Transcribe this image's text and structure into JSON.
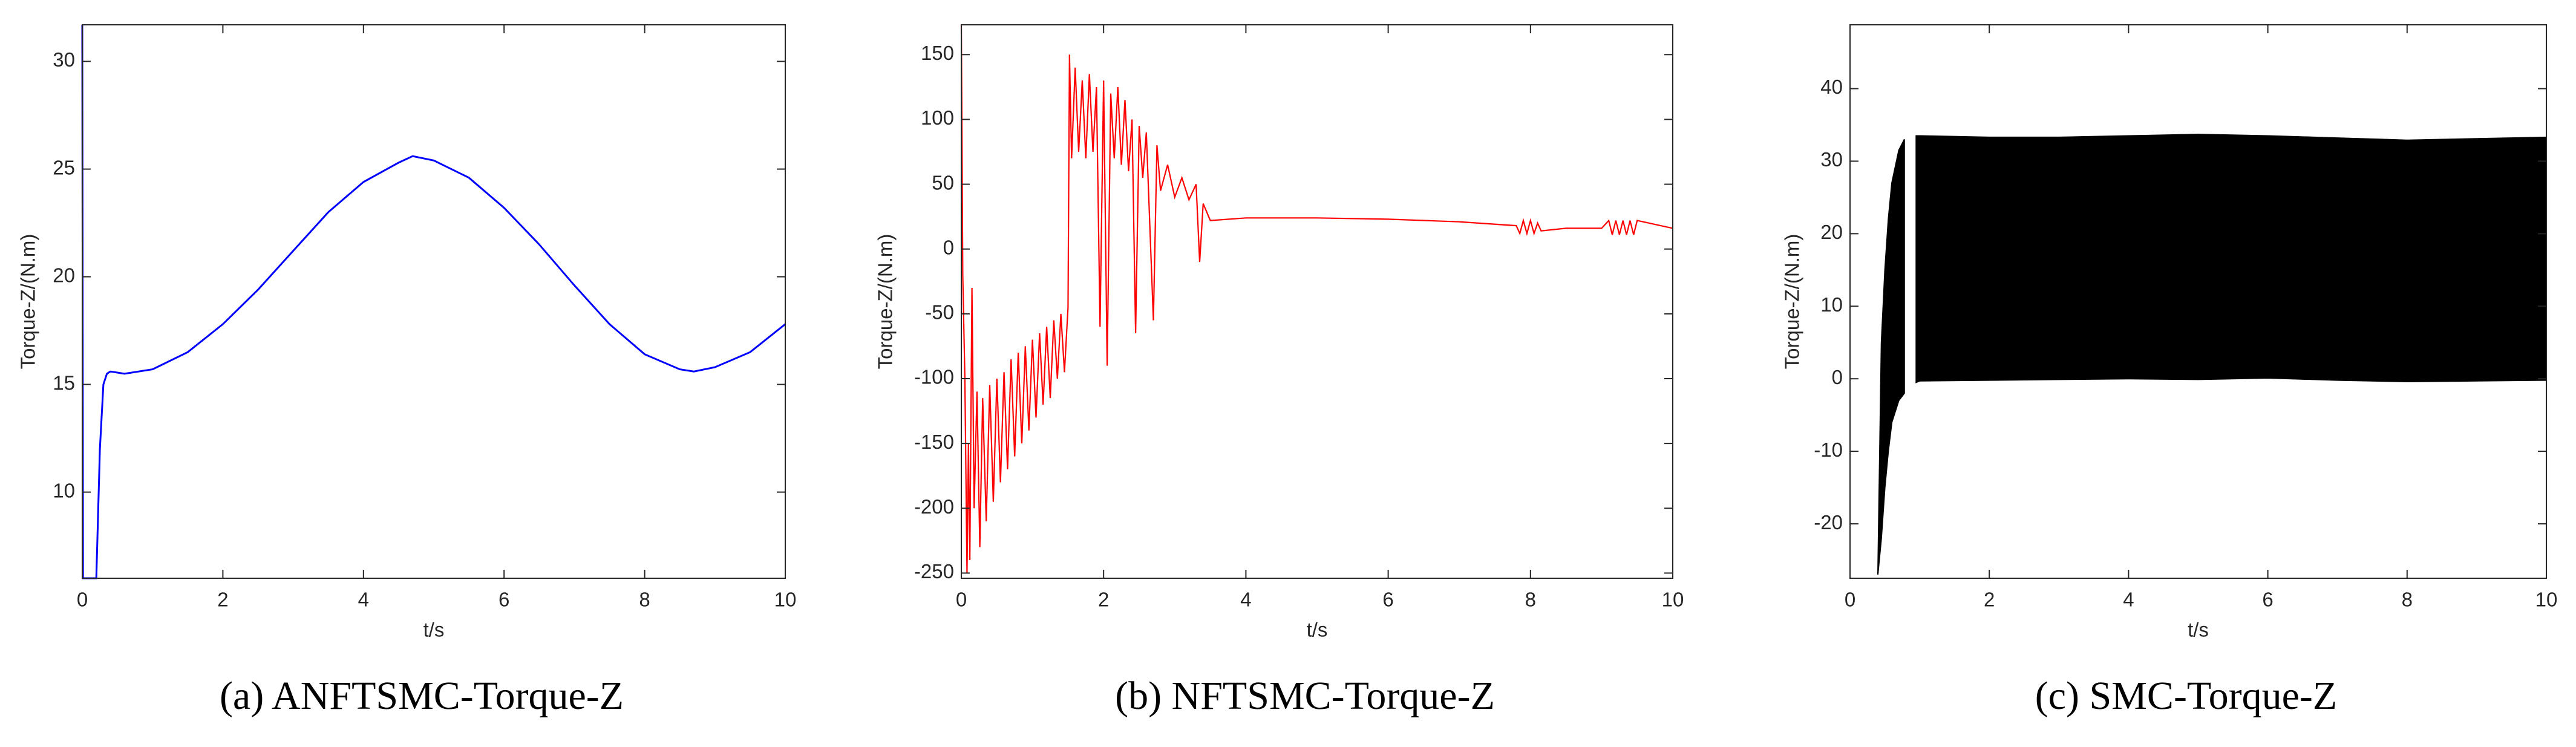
{
  "chart_data": [
    {
      "type": "line",
      "caption": "(a) ANFTSMC-Torque-Z",
      "xlabel": "t/s",
      "ylabel": "Torque-Z/(N.m)",
      "color": "#0000ff",
      "x": [
        0,
        0.01,
        0.2,
        0.25,
        0.3,
        0.35,
        0.4,
        0.6,
        1,
        1.5,
        2,
        2.5,
        3,
        3.5,
        4,
        4.5,
        4.7,
        5,
        5.5,
        6,
        6.5,
        7,
        7.5,
        8,
        8.5,
        8.7,
        9,
        9.5,
        10
      ],
      "values": [
        31.7,
        6,
        6,
        12,
        15,
        15.5,
        15.6,
        15.5,
        15.7,
        16.5,
        17.8,
        19.4,
        21.2,
        23,
        24.4,
        25.3,
        25.6,
        25.4,
        24.6,
        23.2,
        21.5,
        19.6,
        17.8,
        16.4,
        15.7,
        15.6,
        15.8,
        16.5,
        17.8
      ],
      "xlim": [
        0,
        10
      ],
      "xticks": [
        0,
        2,
        4,
        6,
        8,
        10
      ],
      "ylim": [
        6,
        31.7
      ],
      "yticks": [
        10,
        15,
        20,
        25,
        30
      ]
    },
    {
      "type": "line",
      "caption": "(b) NFTSMC-Torque-Z",
      "xlabel": "t/s",
      "ylabel": "Torque-Z/(N.m)",
      "color": "#ff0000",
      "x": [
        0,
        0.02,
        0.05,
        0.08,
        0.1,
        0.12,
        0.15,
        0.18,
        0.22,
        0.26,
        0.3,
        0.35,
        0.4,
        0.45,
        0.5,
        0.55,
        0.6,
        0.65,
        0.7,
        0.75,
        0.8,
        0.85,
        0.9,
        0.95,
        1.0,
        1.05,
        1.1,
        1.15,
        1.2,
        1.25,
        1.3,
        1.35,
        1.4,
        1.45,
        1.5,
        1.52,
        1.55,
        1.6,
        1.65,
        1.7,
        1.75,
        1.8,
        1.85,
        1.9,
        1.95,
        2.0,
        2.05,
        2.1,
        2.15,
        2.2,
        2.25,
        2.3,
        2.35,
        2.4,
        2.45,
        2.5,
        2.55,
        2.6,
        2.7,
        2.75,
        2.8,
        2.9,
        3.0,
        3.1,
        3.2,
        3.3,
        3.35,
        3.4,
        3.5,
        4,
        5,
        6,
        7,
        7.8,
        7.85,
        7.9,
        7.95,
        8.0,
        8.05,
        8.1,
        8.15,
        8.5,
        9,
        9.1,
        9.15,
        9.2,
        9.25,
        9.3,
        9.35,
        9.4,
        9.45,
        9.5,
        10
      ],
      "values": [
        173,
        -20,
        -100,
        -250,
        -150,
        -240,
        -30,
        -200,
        -110,
        -230,
        -115,
        -210,
        -105,
        -195,
        -100,
        -180,
        -95,
        -170,
        -85,
        -160,
        -80,
        -150,
        -75,
        -140,
        -70,
        -130,
        -65,
        -120,
        -60,
        -115,
        -55,
        -100,
        -50,
        -95,
        -45,
        150,
        70,
        140,
        75,
        130,
        70,
        135,
        75,
        125,
        -60,
        130,
        -90,
        120,
        70,
        125,
        65,
        115,
        60,
        100,
        -65,
        95,
        55,
        90,
        -55,
        80,
        45,
        65,
        40,
        55,
        38,
        50,
        -10,
        35,
        22,
        24,
        24,
        23,
        21,
        18,
        12,
        22,
        12,
        22,
        12,
        20,
        14,
        16,
        16,
        22,
        11,
        22,
        11,
        22,
        11,
        22,
        11,
        22,
        16
      ],
      "xlim": [
        0,
        10
      ],
      "xticks": [
        0,
        2,
        4,
        6,
        8,
        10
      ],
      "ylim": [
        -254,
        173
      ],
      "yticks": [
        -250,
        -200,
        -150,
        -100,
        -50,
        0,
        50,
        100,
        150
      ]
    },
    {
      "type": "band",
      "caption": "(c) SMC-Torque-Z",
      "xlabel": "t/s",
      "ylabel": "Torque-Z/(N.m)",
      "color": "#000000",
      "x": [
        0.4,
        0.45,
        0.5,
        0.55,
        0.6,
        0.7,
        0.78,
        0.85,
        0.95,
        1,
        2,
        3,
        4,
        5,
        6,
        7,
        8,
        9,
        10
      ],
      "high": [
        -27,
        5,
        15,
        22,
        27,
        31.5,
        33,
        null,
        33.5,
        33.5,
        33.3,
        33.3,
        33.5,
        33.7,
        33.5,
        33.2,
        32.9,
        33.1,
        33.3
      ],
      "low": [
        -27,
        -22,
        -15,
        -10,
        -6,
        -3,
        -2,
        null,
        -0.5,
        -0.3,
        -0.2,
        -0.1,
        0,
        -0.1,
        0.1,
        -0.2,
        -0.4,
        -0.3,
        -0.2
      ],
      "xlim": [
        0,
        10
      ],
      "xticks": [
        0,
        2,
        4,
        6,
        8,
        10
      ],
      "ylim": [
        -27.5,
        48.8
      ],
      "yticks": [
        -20,
        -10,
        0,
        10,
        20,
        30,
        40
      ]
    }
  ]
}
